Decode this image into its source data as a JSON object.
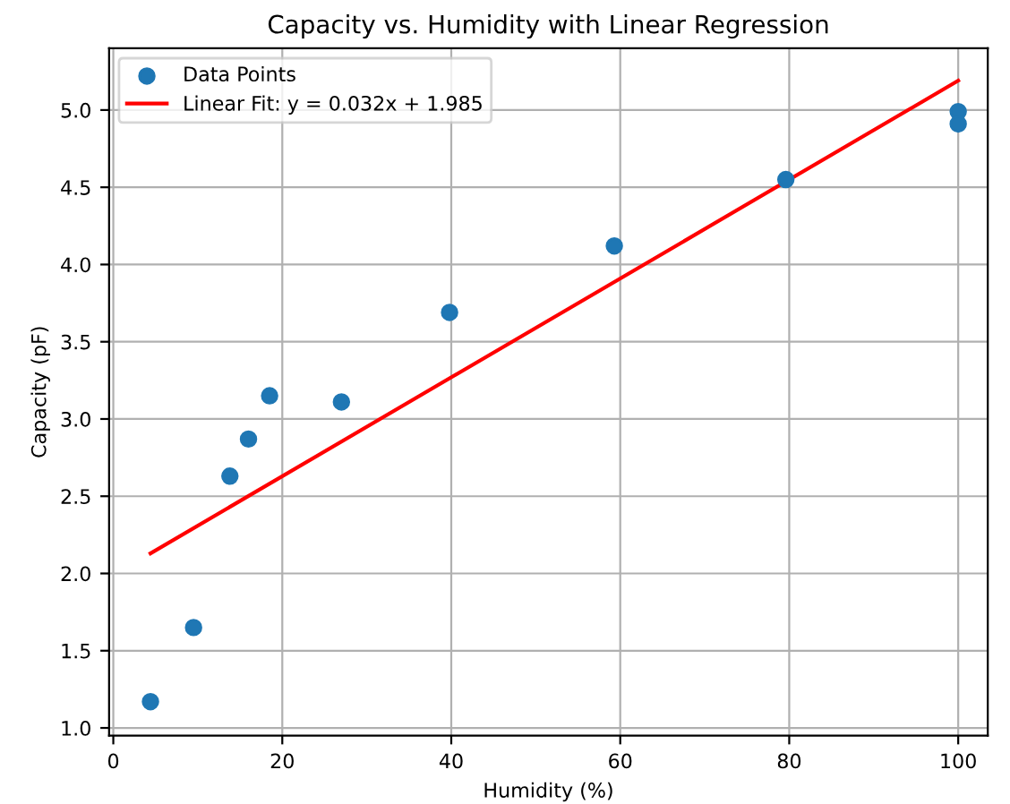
{
  "chart_data": {
    "type": "scatter",
    "title": "Capacity vs. Humidity with Linear Regression",
    "xlabel": "Humidity (%)",
    "ylabel": "Capacity (pF)",
    "series": [
      {
        "name": "Data Points",
        "color": "#1f77b4",
        "marker": "circle",
        "x": [
          4.4,
          9.5,
          13.8,
          16.0,
          18.5,
          27.0,
          39.8,
          59.3,
          79.6,
          100,
          100
        ],
        "values": [
          1.17,
          1.65,
          2.63,
          2.87,
          3.15,
          3.11,
          3.69,
          4.12,
          4.55,
          4.99,
          4.91
        ]
      },
      {
        "name": "Linear Fit: y = 0.032x + 1.985",
        "type": "line",
        "color": "#ff0000",
        "line_style": "solid",
        "x": [
          4.4,
          100
        ],
        "values": [
          2.13,
          5.19
        ]
      }
    ],
    "xlim": [
      -0.5,
      103.5
    ],
    "ylim": [
      0.95,
      5.4
    ],
    "xticks": [
      0,
      20,
      40,
      60,
      80,
      100
    ],
    "yticks": [
      {
        "value": 1,
        "label": "1.0"
      },
      1.5,
      {
        "value": 2,
        "label": "2.0"
      },
      2.5,
      {
        "value": 3,
        "label": "3.0"
      },
      3.5,
      {
        "value": 4,
        "label": "4.0"
      },
      4.5,
      {
        "value": 5,
        "label": "5.0"
      }
    ],
    "grid": true,
    "legend": "top left"
  }
}
